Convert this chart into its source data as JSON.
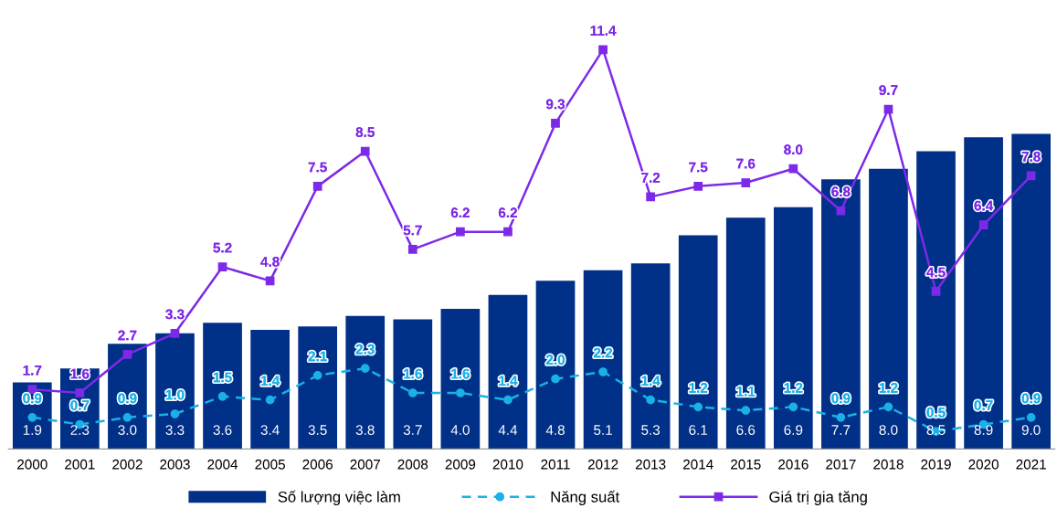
{
  "chart_data": {
    "type": "bar",
    "categories": [
      "2000",
      "2001",
      "2002",
      "2003",
      "2004",
      "2005",
      "2006",
      "2007",
      "2008",
      "2009",
      "2010",
      "2011",
      "2012",
      "2013",
      "2014",
      "2015",
      "2016",
      "2017",
      "2018",
      "2019",
      "2020",
      "2021"
    ],
    "series": [
      {
        "name": "Số lượng việc làm",
        "color": "#003087",
        "values": [
          1.9,
          2.3,
          3.0,
          3.3,
          3.6,
          3.4,
          3.5,
          3.8,
          3.7,
          4.0,
          4.4,
          4.8,
          5.1,
          5.3,
          6.1,
          6.6,
          6.9,
          7.7,
          8.0,
          8.5,
          8.9,
          9.0
        ],
        "value_labels": [
          "1.9",
          "2.3",
          "3.0",
          "3.3",
          "3.6",
          "3.4",
          "3.5",
          "3.8",
          "3.7",
          "4.0",
          "4.4",
          "4.8",
          "5.1",
          "5.3",
          "6.1",
          "6.6",
          "6.9",
          "7.7",
          "8.0",
          "8.5",
          "8.9",
          "9.0"
        ]
      },
      {
        "name": "Năng suất",
        "type": "line",
        "color": "#1ab0e8",
        "line_style": "dashed",
        "marker": "circle",
        "values": [
          0.9,
          0.7,
          0.9,
          1.0,
          1.5,
          1.4,
          2.1,
          2.3,
          1.6,
          1.6,
          1.4,
          2.0,
          2.2,
          1.4,
          1.2,
          1.1,
          1.2,
          0.9,
          1.2,
          0.5,
          0.7,
          0.9
        ],
        "value_labels": [
          "0.9",
          "0.7",
          "0.9",
          "1.0",
          "1.5",
          "1.4",
          "2.1",
          "2.3",
          "1.6",
          "1.6",
          "1.4",
          "2.0",
          "2.2",
          "1.4",
          "1.2",
          "1.1",
          "1.2",
          "0.9",
          "1.2",
          "0.5",
          "0.7",
          "0.9"
        ]
      },
      {
        "name": "Giá trị gia tăng",
        "type": "line",
        "color": "#7d2ae8",
        "line_style": "solid",
        "marker": "square",
        "values": [
          1.7,
          1.6,
          2.7,
          3.3,
          5.2,
          4.8,
          7.5,
          8.5,
          5.7,
          6.2,
          6.2,
          9.3,
          11.4,
          7.2,
          7.5,
          7.6,
          8.0,
          6.8,
          9.7,
          4.5,
          6.4,
          7.8
        ],
        "value_labels": [
          "1.7",
          "1.6",
          "2.7",
          "3.3",
          "5.2",
          "4.8",
          "7.5",
          "8.5",
          "5.7",
          "6.2",
          "6.2",
          "9.3",
          "11.4",
          "7.2",
          "7.5",
          "7.6",
          "8.0",
          "6.8",
          "9.7",
          "4.5",
          "6.4",
          "7.8"
        ]
      }
    ],
    "legend": "bottom",
    "tick_labels": "x"
  }
}
